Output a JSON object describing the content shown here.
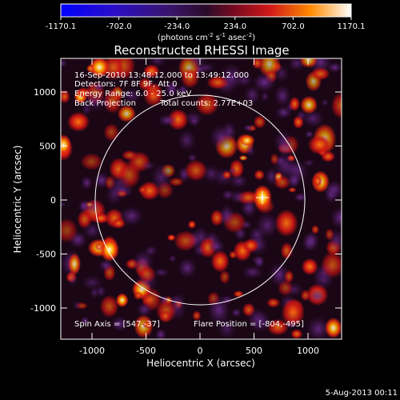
{
  "colorbar": {
    "ticks": [
      "-1170.1",
      "-702.0",
      "-234.0",
      "234.0",
      "702.0",
      "1170.1"
    ],
    "unit_main": "(photons cm",
    "unit_sup1": "-2",
    "unit_mid": " s",
    "unit_sup2": "-1",
    "unit_tail": " asec",
    "unit_sup3": "-2",
    "unit_close": ")"
  },
  "title": "Reconstructed RHESSI Image",
  "info": {
    "time_range": "16-Sep-2010 13:48:12.000 to 13:49:12.000",
    "detectors": "Detectors: 7F 8F 9F, Att 0",
    "energy": "Energy Range: 6.0 - 25.0 keV",
    "method": "Back Projection",
    "counts": "Total counts: 2.77E+03",
    "spin_axis": "Spin Axis = [547,-37]",
    "flare_position": "Flare Position = [-804,-495]"
  },
  "axes": {
    "xlabel": "Heliocentric X (arcsec)",
    "ylabel": "Heliocentric Y (arcsec)",
    "xticks": [
      "-1000",
      "-500",
      "0",
      "500",
      "1000"
    ],
    "yticks": [
      "1000",
      "500",
      "0",
      "-500",
      "-1000"
    ]
  },
  "footer": {
    "date": "5-Aug-2013 00:11"
  },
  "colors": {
    "background": "#000000",
    "colormap": [
      "#0000ff",
      "#3a1aa0",
      "#2a0a4a",
      "#5a1a6e",
      "#a01010",
      "#e03010",
      "#ff8a00",
      "#ffffff"
    ]
  }
}
